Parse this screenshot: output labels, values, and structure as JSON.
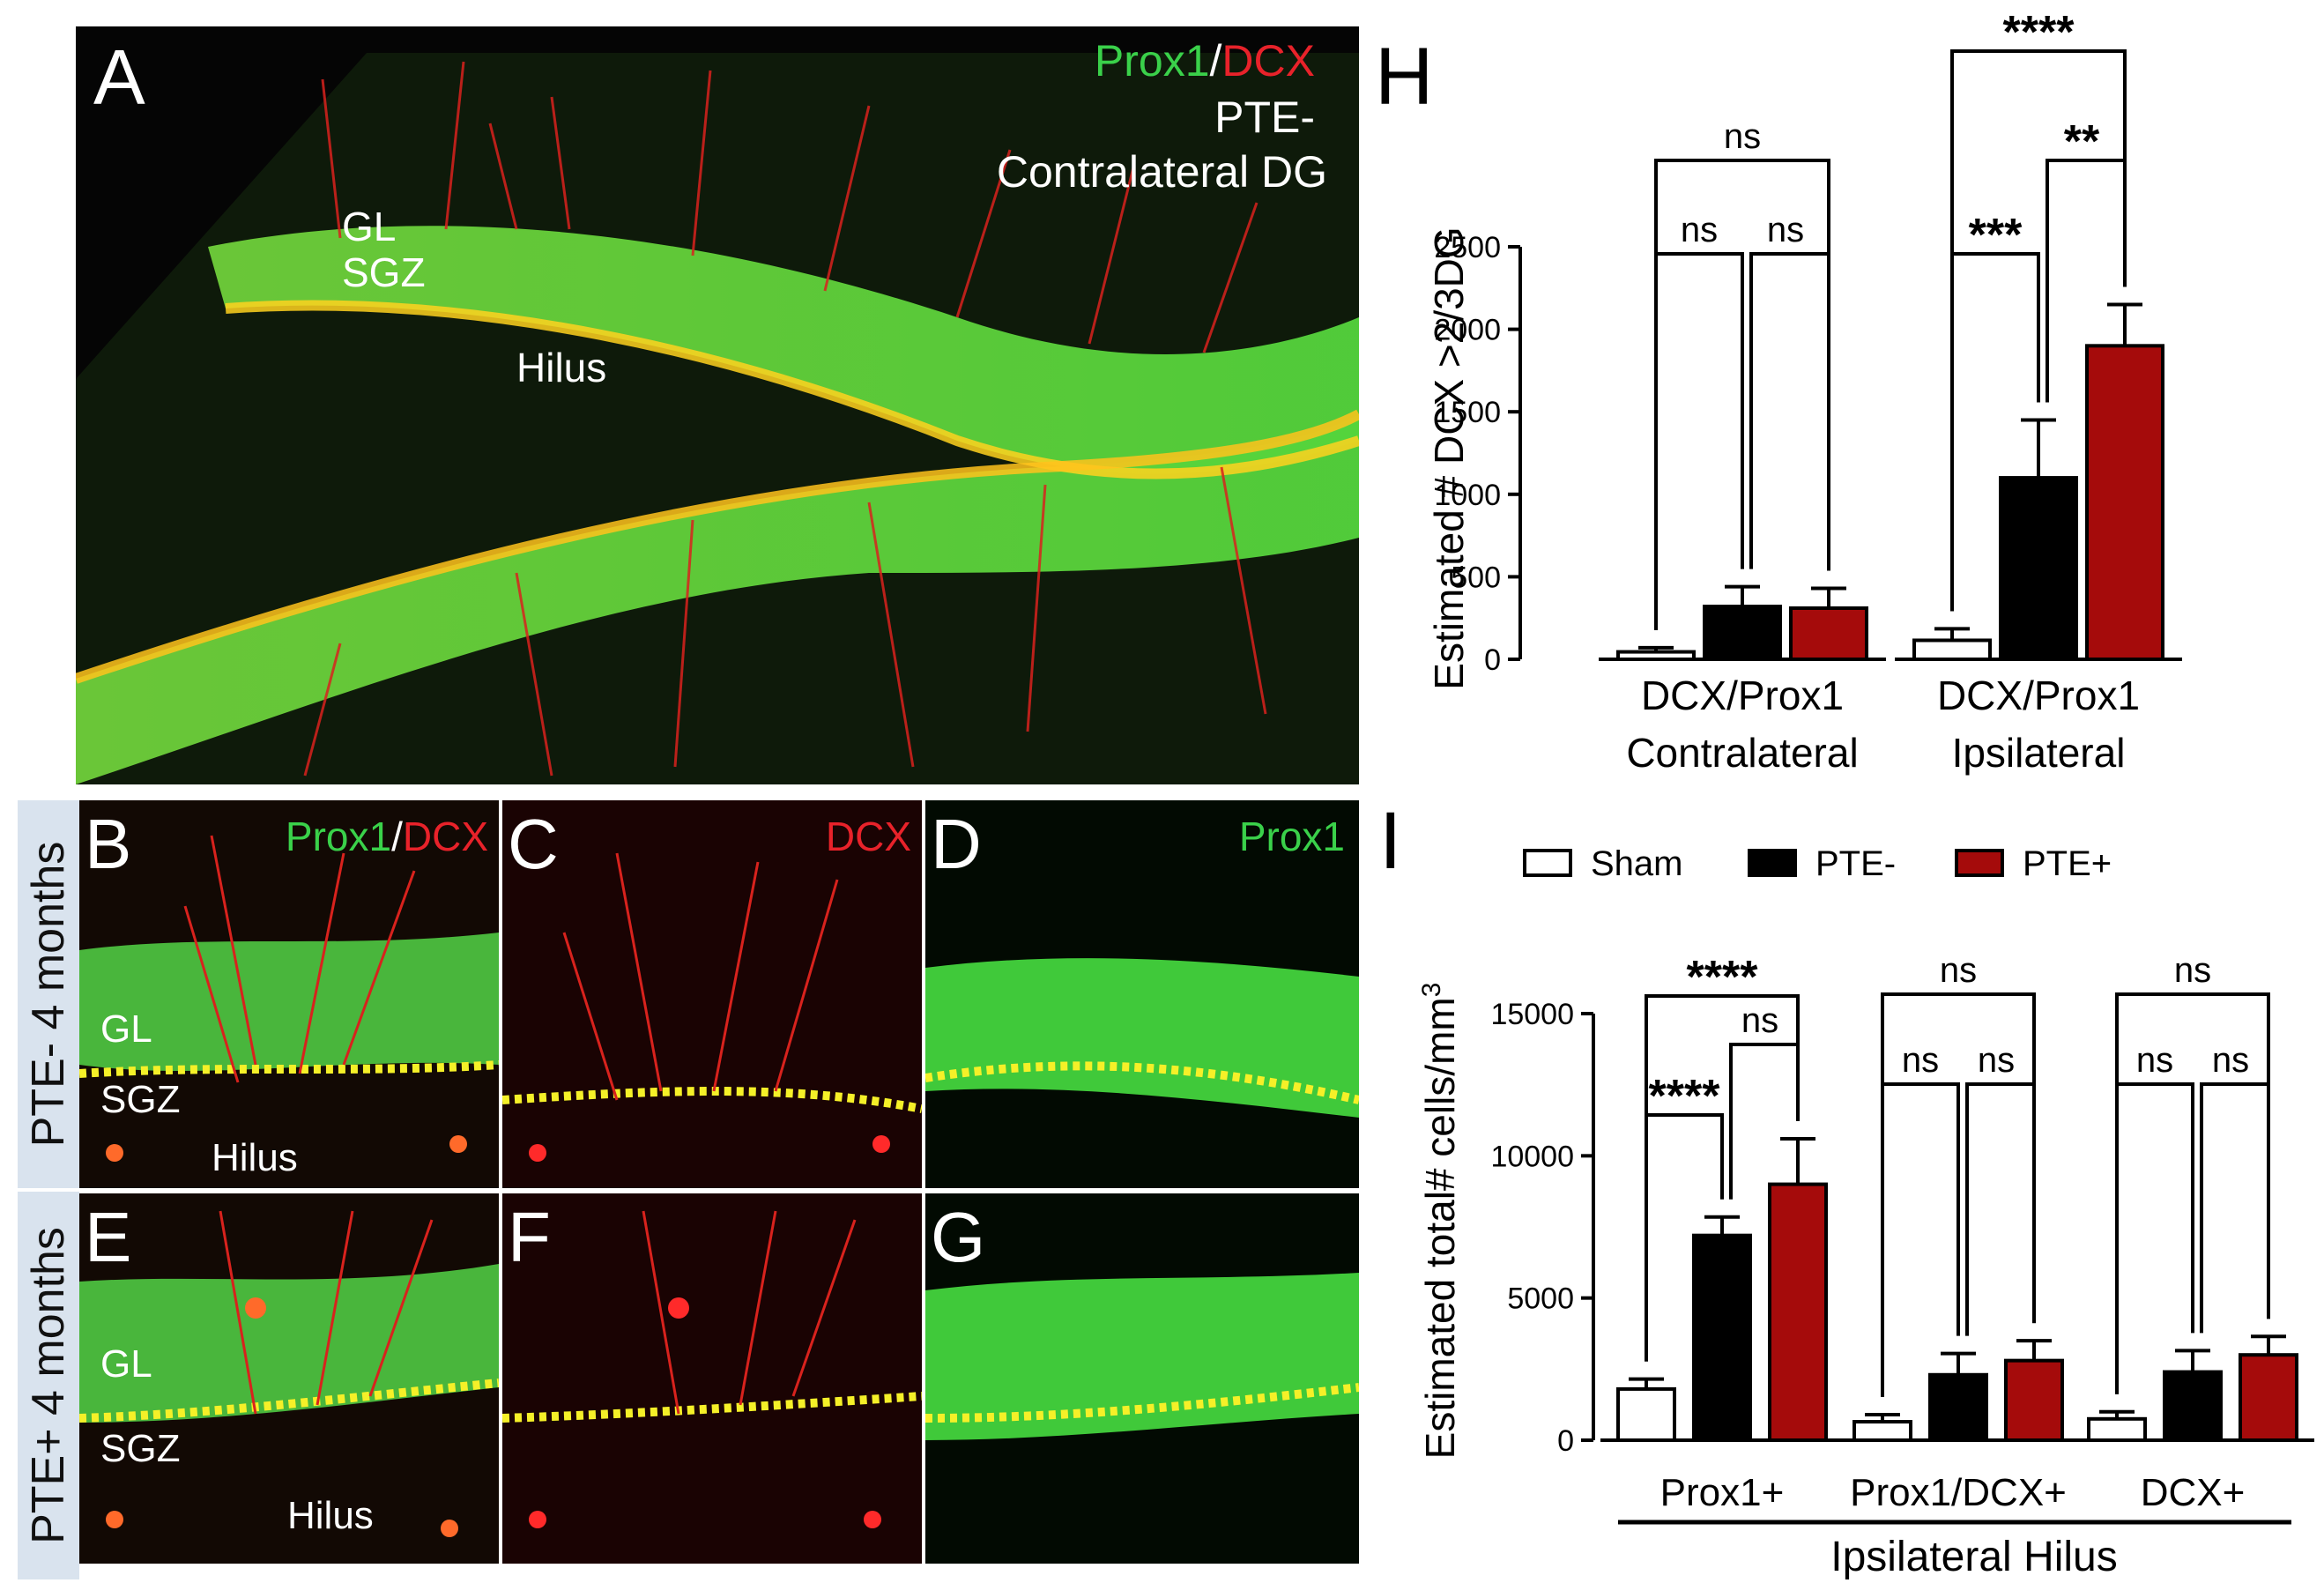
{
  "panels": {
    "A": {
      "letter": "A",
      "stain_green": "Prox1",
      "slash": "/",
      "stain_red": "DCX",
      "line1": "PTE-",
      "line2": "Contralateral DG",
      "regions": [
        "GL",
        "SGZ",
        "Hilus"
      ]
    },
    "B": {
      "letter": "B",
      "stain_green": "Prox1",
      "slash": "/",
      "stain_red": "DCX",
      "regions": [
        "GL",
        "SGZ",
        "Hilus"
      ]
    },
    "C": {
      "letter": "C",
      "stain": "DCX"
    },
    "D": {
      "letter": "D",
      "stain": "Prox1"
    },
    "E": {
      "letter": "E",
      "regions": [
        "GL",
        "SGZ",
        "Hilus"
      ]
    },
    "F": {
      "letter": "F"
    },
    "G": {
      "letter": "G"
    },
    "row_labels": [
      "PTE- 4 months",
      "PTE+ 4 months"
    ]
  },
  "chart_data": [
    {
      "panel": "H",
      "type": "bar",
      "ylabel": "Estimated # DCX >2/3DG",
      "ylim": [
        0,
        2500
      ],
      "yticks": [
        0,
        500,
        1000,
        1500,
        2000,
        2500
      ],
      "groups": [
        {
          "sublabel": "DCX/Prox1",
          "label": "Contralateral",
          "bars": [
            {
              "series": "Sham",
              "value": 45,
              "err": 25
            },
            {
              "series": "PTE-",
              "value": 320,
              "err": 120
            },
            {
              "series": "PTE+",
              "value": 310,
              "err": 120
            }
          ],
          "significance": [
            {
              "pair": [
                0,
                2
              ],
              "text": "ns"
            },
            {
              "pair": [
                0,
                1
              ],
              "text": "ns"
            },
            {
              "pair": [
                1,
                2
              ],
              "text": "ns"
            }
          ]
        },
        {
          "sublabel": "DCX/Prox1",
          "label": "Ipsilateral",
          "bars": [
            {
              "series": "Sham",
              "value": 115,
              "err": 70
            },
            {
              "series": "PTE-",
              "value": 1100,
              "err": 350
            },
            {
              "series": "PTE+",
              "value": 1900,
              "err": 250
            }
          ],
          "significance": [
            {
              "pair": [
                0,
                2
              ],
              "text": "****"
            },
            {
              "pair": [
                1,
                2
              ],
              "text": "**"
            },
            {
              "pair": [
                0,
                1
              ],
              "text": "***"
            }
          ]
        }
      ],
      "colors": {
        "Sham": "#ffffff",
        "PTE-": "#000000",
        "PTE+": "#a50b0b"
      }
    },
    {
      "panel": "I",
      "type": "bar",
      "ylabel": "Estimated total# cells/mm",
      "ylabel_sup": "3",
      "xlabel": "Ipsilateral Hilus",
      "ylim": [
        0,
        15000
      ],
      "yticks": [
        0,
        5000,
        10000,
        15000
      ],
      "legend": [
        {
          "name": "Sham",
          "color": "#ffffff"
        },
        {
          "name": "PTE-",
          "color": "#000000"
        },
        {
          "name": "PTE+",
          "color": "#a50b0b"
        }
      ],
      "groups": [
        {
          "label": "Prox1+",
          "bars": [
            {
              "series": "Sham",
              "value": 1800,
              "err": 350
            },
            {
              "series": "PTE-",
              "value": 7200,
              "err": 650
            },
            {
              "series": "PTE+",
              "value": 9000,
              "err": 1600
            }
          ],
          "significance": [
            {
              "pair": [
                0,
                2
              ],
              "text": "****"
            },
            {
              "pair": [
                1,
                2
              ],
              "text": "ns"
            },
            {
              "pair": [
                0,
                1
              ],
              "text": "****"
            }
          ]
        },
        {
          "label": "Prox1/DCX+",
          "bars": [
            {
              "series": "Sham",
              "value": 650,
              "err": 250
            },
            {
              "series": "PTE-",
              "value": 2300,
              "err": 750
            },
            {
              "series": "PTE+",
              "value": 2800,
              "err": 700
            }
          ],
          "significance": [
            {
              "pair": [
                0,
                2
              ],
              "text": "ns"
            },
            {
              "pair": [
                0,
                1
              ],
              "text": "ns"
            },
            {
              "pair": [
                1,
                2
              ],
              "text": "ns"
            }
          ]
        },
        {
          "label": "DCX+",
          "bars": [
            {
              "series": "Sham",
              "value": 750,
              "err": 250
            },
            {
              "series": "PTE-",
              "value": 2400,
              "err": 750
            },
            {
              "series": "PTE+",
              "value": 3000,
              "err": 650
            }
          ],
          "significance": [
            {
              "pair": [
                0,
                2
              ],
              "text": "ns"
            },
            {
              "pair": [
                0,
                1
              ],
              "text": "ns"
            },
            {
              "pair": [
                1,
                2
              ],
              "text": "ns"
            }
          ]
        }
      ]
    }
  ],
  "chart_letters": {
    "H": "H",
    "I": "I"
  }
}
